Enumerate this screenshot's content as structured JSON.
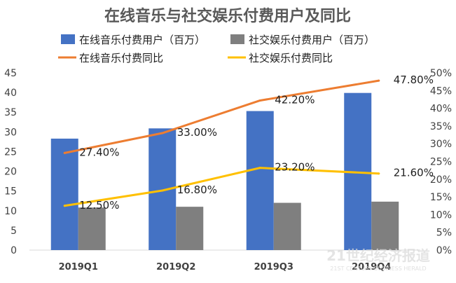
{
  "chart_data": {
    "type": "bar",
    "title": "在线音乐与社交娱乐付费用户及同比",
    "categories": [
      "2019Q1",
      "2019Q2",
      "2019Q3",
      "2019Q4"
    ],
    "series": [
      {
        "name": "在线音乐付费用户（百万）",
        "kind": "bar",
        "axis": "left",
        "color": "#4472c4",
        "values": [
          28.3,
          30.9,
          35.3,
          39.9
        ]
      },
      {
        "name": "社交娱乐付费用户（百万）",
        "kind": "bar",
        "axis": "left",
        "color": "#7f7f7f",
        "values": [
          10.8,
          11.0,
          12.0,
          12.3
        ]
      },
      {
        "name": "在线音乐付费同比",
        "kind": "line",
        "axis": "right",
        "color": "#ed7d31",
        "values": [
          27.4,
          33.0,
          42.2,
          47.8
        ],
        "labels": [
          "27.40%",
          "33.00%",
          "42.20%",
          "47.80%"
        ]
      },
      {
        "name": "社交娱乐付费同比",
        "kind": "line",
        "axis": "right",
        "color": "#ffc000",
        "values": [
          12.5,
          16.8,
          23.2,
          21.6
        ],
        "labels": [
          "12.50%",
          "16.80%",
          "23.20%",
          "21.60%"
        ]
      }
    ],
    "y_left": {
      "min": 0,
      "max": 45,
      "ticks": [
        "0",
        "5",
        "10",
        "15",
        "20",
        "25",
        "30",
        "35",
        "40",
        "45"
      ]
    },
    "y_right": {
      "min": 0,
      "max": 50,
      "ticks": [
        "0%",
        "5%",
        "10%",
        "15%",
        "20%",
        "25%",
        "30%",
        "35%",
        "40%",
        "45%",
        "50%"
      ]
    },
    "legend_position": "top",
    "grid": false,
    "watermark": {
      "text": "21世纪经济报道",
      "subtext": "21ST CENTURY BUSINESS HERALD"
    }
  }
}
